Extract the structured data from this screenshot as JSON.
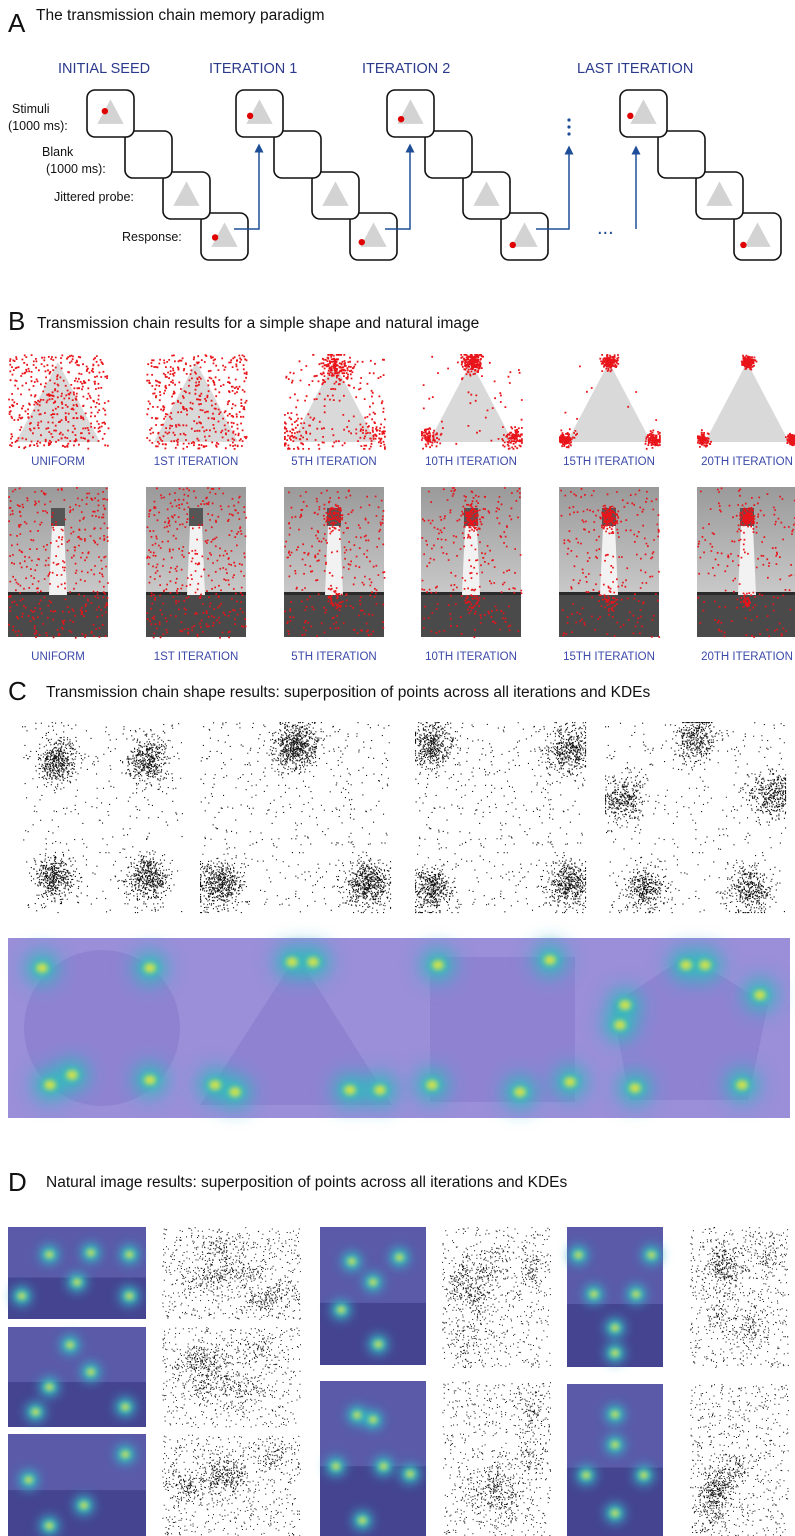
{
  "panel_a": {
    "letter": "A",
    "title": "The transmission chain memory paradigm",
    "columns": [
      "INITIAL SEED",
      "ITERATION 1",
      "ITERATION 2",
      "LAST ITERATION"
    ],
    "rows": [
      "Stimuli",
      "(1000 ms):",
      "Blank",
      "(1000 ms):",
      "Jittered probe:",
      "Response:"
    ],
    "continuation": "...",
    "accent_color": "#1f4e99",
    "dot_color": "#e00000"
  },
  "panel_b": {
    "letter": "B",
    "title": "Transmission chain results for a simple shape and natural image",
    "shape_captions": [
      "UNIFORM",
      "1ST ITERATION",
      "5TH ITERATION",
      "10TH ITERATION",
      "15TH ITERATION",
      "20TH ITERATION"
    ],
    "image_captions": [
      "UNIFORM",
      "1ST ITERATION",
      "5TH ITERATION",
      "10TH ITERATION",
      "15TH ITERATION",
      "20TH ITERATION"
    ]
  },
  "panel_c": {
    "letter": "C",
    "title": "Transmission chain shape results: superposition of points across all iterations and KDEs",
    "shapes": [
      "circle",
      "triangle",
      "square",
      "pentagon"
    ]
  },
  "panel_d": {
    "letter": "D",
    "title": "Natural image results: superposition of points across all iterations and KDEs"
  }
}
